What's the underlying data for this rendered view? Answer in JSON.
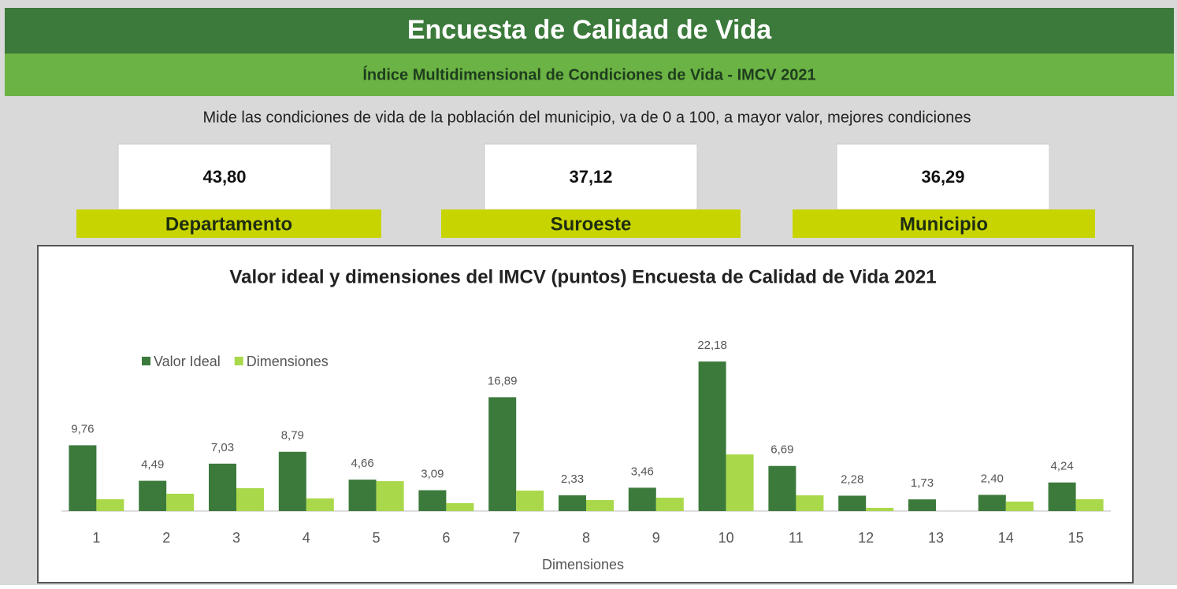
{
  "header": {
    "title": "Encuesta de  Calidad de Vida",
    "subtitle": "Índice Multidimensional de Condiciones de Vida - IMCV 2021",
    "description": "Mide las condiciones de vida de la población del municipio, va de 0 a 100, a mayor valor, mejores condiciones"
  },
  "kpis": [
    {
      "value": "43,80",
      "label": "Departamento"
    },
    {
      "value": "37,12",
      "label": "Suroeste"
    },
    {
      "value": "36,29",
      "label": "Municipio"
    }
  ],
  "chart_data": {
    "type": "bar",
    "title": "Valor ideal y dimensiones del IMCV (puntos) Encuesta de Calidad de Vida 2021",
    "x_label": "Dimensiones",
    "categories": [
      "1",
      "2",
      "3",
      "4",
      "5",
      "6",
      "7",
      "8",
      "9",
      "10",
      "11",
      "12",
      "13",
      "14",
      "15"
    ],
    "series": [
      {
        "name": "Valor Ideal",
        "color": "#3b7a3b",
        "values": [
          9.76,
          4.49,
          7.03,
          8.79,
          4.66,
          3.09,
          16.89,
          2.33,
          3.46,
          22.18,
          6.69,
          2.28,
          1.73,
          2.4,
          4.24
        ],
        "value_labels": [
          "9,76",
          "4,49",
          "7,03",
          "8,79",
          "4,66",
          "3,09",
          "16,89",
          "2,33",
          "3,46",
          "22,18",
          "6,69",
          "2,28",
          "1,73",
          "2,40",
          "4,24"
        ]
      },
      {
        "name": "Dimensiones",
        "color": "#a9d84a",
        "values": [
          1.75,
          2.57,
          3.4,
          1.87,
          4.43,
          1.17,
          3.03,
          1.63,
          1.98,
          8.4,
          2.33,
          0.47,
          0,
          1.4,
          1.75
        ]
      }
    ],
    "ylim": [
      0,
      25
    ],
    "legend": "top-left"
  }
}
